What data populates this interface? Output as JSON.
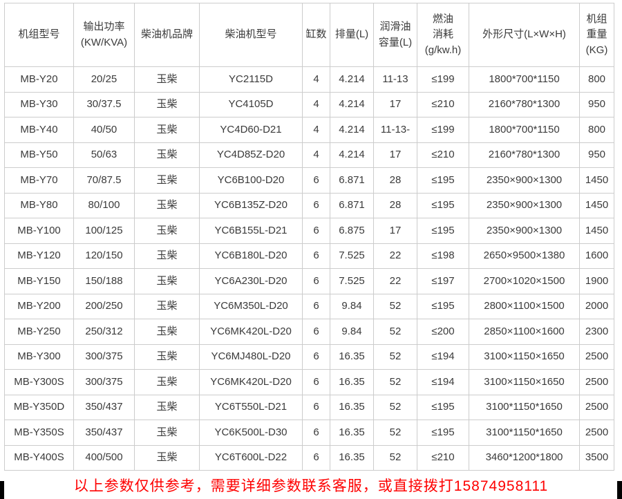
{
  "table": {
    "headers": [
      "机组型号",
      "输出功率\n(KW/KVA)",
      "柴油机品牌",
      "柴油机型号",
      "缸数",
      "排量(L)",
      "润滑油\n容量(L)",
      "燃油\n消耗\n(g/kw.h)",
      "外形尺寸(L×W×H)",
      "机组\n重量\n(KG)"
    ],
    "rows": [
      [
        "MB-Y20",
        "20/25",
        "玉柴",
        "YC2115D",
        "4",
        "4.214",
        "11-13",
        "≤199",
        "1800*700*1150",
        "800"
      ],
      [
        "MB-Y30",
        "30/37.5",
        "玉柴",
        "YC4105D",
        "4",
        "4.214",
        "17",
        "≤210",
        "2160*780*1300",
        "950"
      ],
      [
        "MB-Y40",
        "40/50",
        "玉柴",
        "YC4D60-D21",
        "4",
        "4.214",
        "11-13-",
        "≤199",
        "1800*700*1150",
        "800"
      ],
      [
        "MB-Y50",
        "50/63",
        "玉柴",
        "YC4D85Z-D20",
        "4",
        "4.214",
        "17",
        "≤210",
        "2160*780*1300",
        "950"
      ],
      [
        "MB-Y70",
        "70/87.5",
        "玉柴",
        "YC6B100-D20",
        "6",
        "6.871",
        "28",
        "≤195",
        "2350×900×1300",
        "1450"
      ],
      [
        "MB-Y80",
        "80/100",
        "玉柴",
        "YC6B135Z-D20",
        "6",
        "6.871",
        "28",
        "≤195",
        "2350×900×1300",
        "1450"
      ],
      [
        "MB-Y100",
        "100/125",
        "玉柴",
        "YC6B155L-D21",
        "6",
        "6.875",
        "17",
        "≤195",
        "2350×900×1300",
        "1450"
      ],
      [
        "MB-Y120",
        "120/150",
        "玉柴",
        "YC6B180L-D20",
        "6",
        "7.525",
        "22",
        "≤198",
        "2650×9500×1380",
        "1600"
      ],
      [
        "MB-Y150",
        "150/188",
        "玉柴",
        "YC6A230L-D20",
        "6",
        "7.525",
        "22",
        "≤197",
        "2700×1020×1500",
        "1900"
      ],
      [
        "MB-Y200",
        "200/250",
        "玉柴",
        "YC6M350L-D20",
        "6",
        "9.84",
        "52",
        "≤195",
        "2800×1100×1500",
        "2000"
      ],
      [
        "MB-Y250",
        "250/312",
        "玉柴",
        "YC6MK420L-D20",
        "6",
        "9.84",
        "52",
        "≤200",
        "2850×1100×1600",
        "2300"
      ],
      [
        "MB-Y300",
        "300/375",
        "玉柴",
        "YC6MJ480L-D20",
        "6",
        "16.35",
        "52",
        "≤194",
        "3100×1150×1650",
        "2500"
      ],
      [
        "MB-Y300S",
        "300/375",
        "玉柴",
        "YC6MK420L-D20",
        "6",
        "16.35",
        "52",
        "≤194",
        "3100×1150×1650",
        "2500"
      ],
      [
        "MB-Y350D",
        "350/437",
        "玉柴",
        "YC6T550L-D21",
        "6",
        "16.35",
        "52",
        "≤195",
        "3100*1150*1650",
        "2500"
      ],
      [
        "MB-Y350S",
        "350/437",
        "玉柴",
        "YC6K500L-D30",
        "6",
        "16.35",
        "52",
        "≤195",
        "3100*1150*1650",
        "2500"
      ],
      [
        "MB-Y400S",
        "400/500",
        "玉柴",
        "YC6T600L-D22",
        "6",
        "16.35",
        "52",
        "≤210",
        "3460*1200*1800",
        "3500"
      ]
    ]
  },
  "footer": {
    "notice": "以上参数仅供参考，需要详细参数联系客服，或直接拨打15874958111"
  },
  "colors": {
    "notice_red": "#fe0000",
    "grid_line": "#cccccc",
    "cell_text": "#3a3a3a",
    "edge_bar": "#000000"
  }
}
